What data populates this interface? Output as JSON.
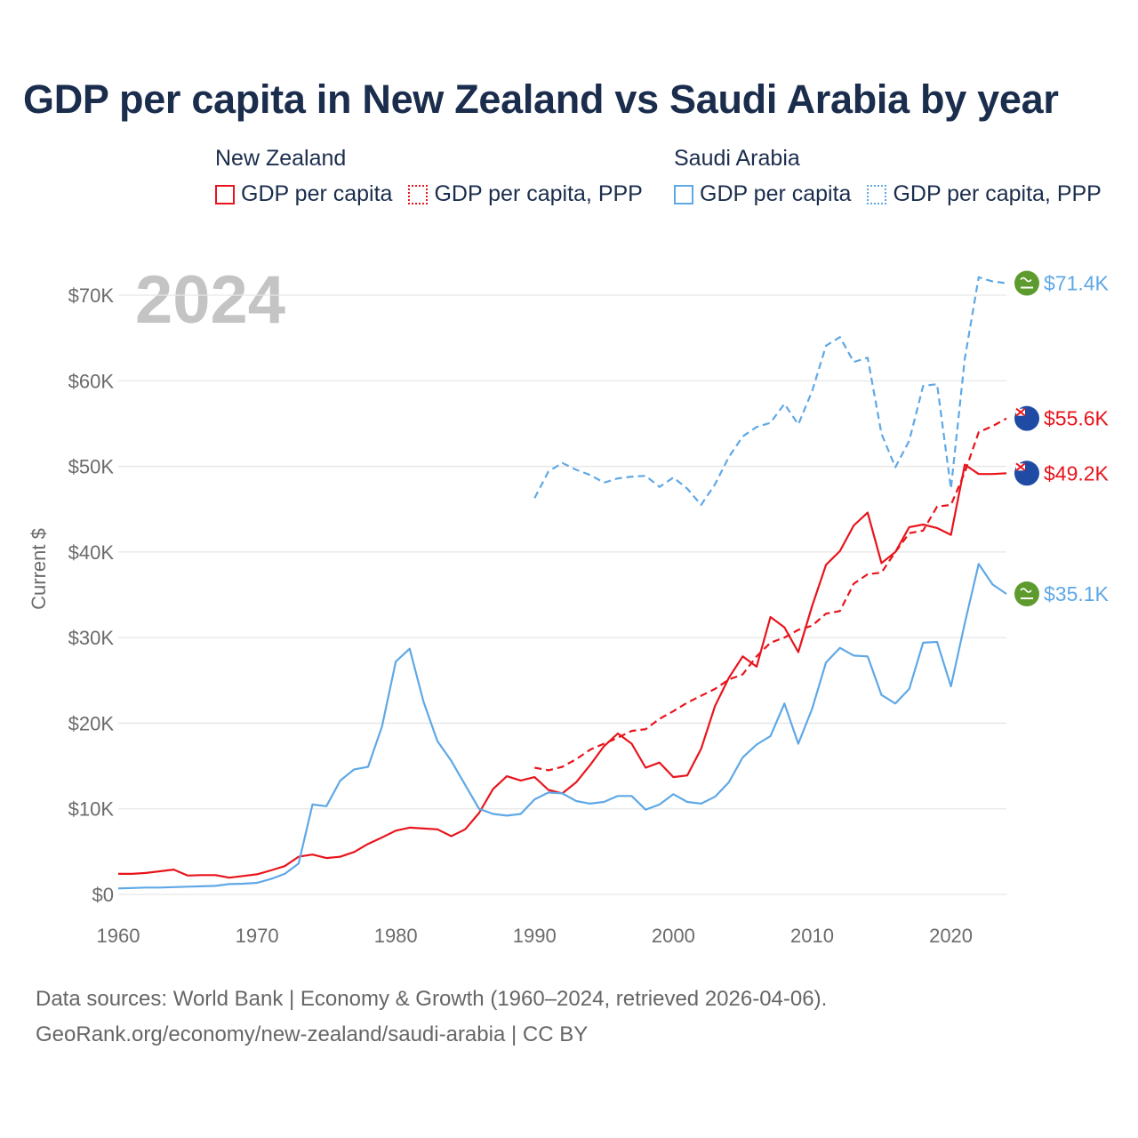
{
  "title": "GDP per capita in New Zealand vs Saudi Arabia by year",
  "legend": {
    "groups": [
      {
        "name": "New Zealand",
        "items": [
          "GDP per capita",
          "GDP per capita, PPP"
        ]
      },
      {
        "name": "Saudi Arabia",
        "items": [
          "GDP per capita",
          "GDP per capita, PPP"
        ]
      }
    ]
  },
  "colors": {
    "nz": "#e8141b",
    "sa": "#5fa8e6",
    "grid": "#e6e6e6",
    "year_watermark": "#c4c4c4",
    "sa_flag": "#5d9b2f",
    "nz_flag": "#1f4ba5"
  },
  "footer": {
    "line1": "Data sources: World Bank | Economy & Growth (1960–2024, retrieved 2026-04-06).",
    "line2": "GeoRank.org/economy/new-zealand/saudi-arabia | CC BY"
  },
  "chart_data": {
    "type": "line",
    "title": "GDP per capita in New Zealand vs Saudi Arabia by year",
    "ylabel": "Current $",
    "xlabel": "",
    "year_label": "2024",
    "xlim": [
      1960,
      2024
    ],
    "ylim": [
      0,
      70000
    ],
    "x_ticks": [
      1960,
      1970,
      1980,
      1990,
      2000,
      2010,
      2020
    ],
    "y_ticks": [
      0,
      10000,
      20000,
      30000,
      40000,
      50000,
      60000,
      70000
    ],
    "y_tick_labels": [
      "$0",
      "$10K",
      "$20K",
      "$30K",
      "$40K",
      "$50K",
      "$60K",
      "$70K"
    ],
    "grid": true,
    "series": [
      {
        "name": "New Zealand — GDP per capita",
        "country": "nz",
        "style": "solid",
        "end_label": "$49.2K",
        "x_start": 1960,
        "values": [
          2400,
          2400,
          2500,
          2700,
          2900,
          2200,
          2250,
          2250,
          1950,
          2150,
          2350,
          2800,
          3300,
          4400,
          4650,
          4250,
          4400,
          4950,
          5900,
          6650,
          7450,
          7800,
          7700,
          7600,
          6800,
          7600,
          9500,
          12300,
          13800,
          13300,
          13700,
          12200,
          11800,
          13100,
          15100,
          17300,
          18800,
          17600,
          14800,
          15400,
          13700,
          13900,
          17000,
          22000,
          25300,
          27800,
          26600,
          32400,
          31200,
          28300,
          33700,
          38500,
          40100,
          43100,
          44600,
          38700,
          40000,
          42900,
          43200,
          42800,
          42000,
          50200,
          49100,
          49100,
          49200
        ]
      },
      {
        "name": "New Zealand — GDP per capita, PPP",
        "country": "nz",
        "style": "dashed",
        "end_label": "$55.6K",
        "x_start": 1990,
        "values": [
          14800,
          14500,
          14900,
          15800,
          16900,
          17600,
          18300,
          19100,
          19300,
          20500,
          21400,
          22400,
          23200,
          24000,
          25100,
          25700,
          27800,
          29400,
          30000,
          30900,
          31400,
          32800,
          33100,
          36300,
          37400,
          37600,
          40000,
          42200,
          42500,
          45300,
          45500,
          49300,
          54000,
          54700,
          55600
        ]
      },
      {
        "name": "Saudi Arabia — GDP per capita",
        "country": "sa",
        "style": "solid",
        "end_label": "$35.1K",
        "x_start": 1960,
        "values": [
          700,
          750,
          800,
          800,
          850,
          900,
          950,
          1000,
          1200,
          1250,
          1350,
          1800,
          2400,
          3600,
          10500,
          10300,
          13300,
          14600,
          14900,
          19600,
          27200,
          28700,
          22500,
          17900,
          15600,
          12800,
          10000,
          9400,
          9200,
          9400,
          11100,
          11900,
          11800,
          10900,
          10600,
          10800,
          11500,
          11500,
          9900,
          10500,
          11700,
          10800,
          10600,
          11400,
          13100,
          16000,
          17500,
          18500,
          22300,
          17600,
          21700,
          27100,
          28800,
          27900,
          27800,
          23300,
          22300,
          24000,
          29400,
          29500,
          24300,
          31700,
          38600,
          36200,
          35100
        ]
      },
      {
        "name": "Saudi Arabia — GDP per capita, PPP",
        "country": "sa",
        "style": "dashed",
        "end_label": "$71.4K",
        "x_start": 1990,
        "values": [
          46300,
          49400,
          50400,
          49600,
          49000,
          48100,
          48600,
          48800,
          48900,
          47600,
          48700,
          47400,
          45500,
          47900,
          51100,
          53500,
          54600,
          55100,
          57300,
          54900,
          58800,
          64100,
          65100,
          62200,
          62700,
          53800,
          49900,
          53000,
          59400,
          59600,
          47400,
          62600,
          72100,
          71600,
          71400
        ]
      }
    ]
  }
}
